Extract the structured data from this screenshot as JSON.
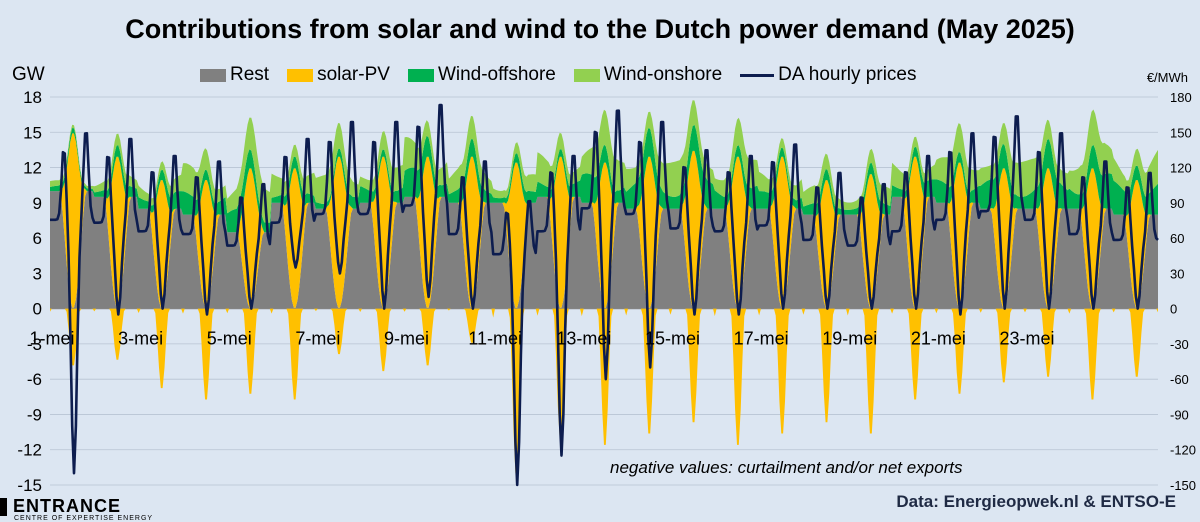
{
  "chart_data": {
    "type": "area",
    "title": "Contributions from solar and wind to the Dutch power demand (May 2025)",
    "y_left_label": "GW",
    "y_right_label": "€/MWh",
    "ylim_left": [
      -15,
      18
    ],
    "ylim_right": [
      -150,
      180
    ],
    "y_left_ticks": [
      "18",
      "15",
      "12",
      "9",
      "6",
      "3",
      "0",
      "-3",
      "-6",
      "-9",
      "-12",
      "-15"
    ],
    "y_right_ticks": [
      "180",
      "150",
      "120",
      "90",
      "60",
      "30",
      "0",
      "-30",
      "-60",
      "-90",
      "-120",
      "-150"
    ],
    "x_tick_labels": [
      "1-mei",
      "3-mei",
      "5-mei",
      "7-mei",
      "9-mei",
      "11-mei",
      "13-mei",
      "15-mei",
      "17-mei",
      "19-mei",
      "21-mei",
      "23-mei"
    ],
    "days": 25,
    "grid": "horizontal",
    "legend_position": "top",
    "series": [
      {
        "name": "Rest",
        "color": "#808080",
        "daily_base_gw": [
          10.0,
          9.5,
          8.5,
          8.0,
          6.5,
          9.0,
          8.5,
          9.0,
          9.5,
          9.0,
          9.0,
          9.5,
          9.0,
          8.5,
          8.5,
          8.5,
          8.5,
          8.0,
          8.0,
          9.5,
          9.0,
          8.5,
          8.5,
          8.5,
          8.0
        ]
      },
      {
        "name": "solar-PV",
        "color": "#ffc000",
        "daily_peak_gw": [
          15.0,
          13.0,
          11.0,
          11.0,
          12.0,
          12.0,
          13.0,
          13.0,
          13.0,
          13.0,
          12.5,
          13.0,
          12.5,
          13.0,
          13.5,
          13.0,
          13.0,
          11.0,
          11.5,
          13.0,
          12.5,
          12.0,
          12.0,
          12.0,
          11.0
        ],
        "daily_min_gw": [
          -5.0,
          -4.5,
          -7.0,
          -8.0,
          -7.5,
          -8.0,
          -4.0,
          -5.5,
          -5.0,
          -3.0,
          -14.5,
          -11.5,
          -12.0,
          -11.0,
          -10.0,
          -12.0,
          -11.0,
          -10.0,
          -11.0,
          -8.0,
          -7.5,
          -6.5,
          -6.0,
          -8.0,
          -6.0
        ]
      },
      {
        "name": "Wind-offshore",
        "color": "#00b050",
        "daily_gw": [
          0.5,
          1.0,
          1.5,
          2.0,
          2.0,
          1.0,
          1.0,
          1.5,
          2.5,
          1.5,
          1.0,
          1.5,
          2.5,
          2.5,
          2.5,
          2.0,
          1.5,
          1.0,
          1.0,
          1.5,
          2.0,
          2.5,
          2.5,
          3.0,
          3.0
        ]
      },
      {
        "name": "Wind-onshore",
        "color": "#92d050",
        "daily_gw": [
          0.5,
          1.0,
          1.5,
          2.5,
          3.0,
          2.5,
          2.5,
          2.0,
          3.0,
          2.0,
          1.5,
          2.5,
          3.0,
          3.0,
          3.0,
          2.5,
          2.0,
          1.5,
          1.5,
          2.0,
          2.5,
          3.0,
          3.0,
          3.0,
          3.0
        ]
      },
      {
        "name": "DA hourly prices",
        "color": "#0d1d4f",
        "type": "line",
        "daily_max_eur": [
          155,
          150,
          135,
          130,
          110,
          150,
          165,
          165,
          180,
          130,
          95,
          135,
          175,
          165,
          140,
          135,
          145,
          120,
          110,
          135,
          155,
          170,
          155,
          130,
          120
        ],
        "daily_min_eur": [
          -140,
          -5,
          0,
          -5,
          0,
          35,
          30,
          0,
          10,
          0,
          -150,
          -125,
          -60,
          -50,
          -5,
          -5,
          0,
          0,
          0,
          0,
          -5,
          0,
          0,
          0,
          0
        ]
      }
    ]
  },
  "annotation": "negative values: curtailment and/or net exports",
  "source": "Data: Energieopwek.nl & ENTSO-E",
  "logo": {
    "name": "ENTRANCE",
    "tagline": "CENTRE OF EXPERTISE ENERGY"
  },
  "colors": {
    "background": "#dce6f2",
    "rest": "#808080",
    "solar": "#ffc000",
    "offshore": "#00b050",
    "onshore": "#92d050",
    "price": "#0d1d4f"
  }
}
